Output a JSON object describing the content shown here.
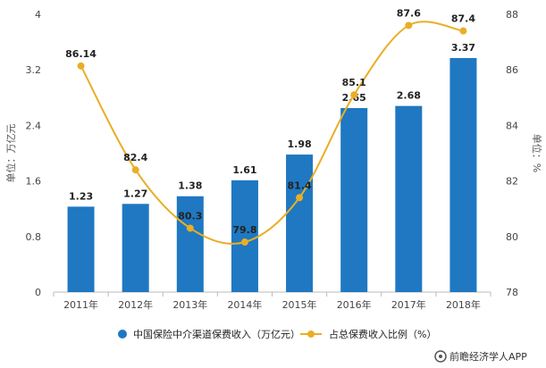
{
  "chart_data": {
    "type": "bar+line",
    "categories": [
      "2011年",
      "2012年",
      "2013年",
      "2014年",
      "2015年",
      "2016年",
      "2017年",
      "2018年"
    ],
    "series": [
      {
        "name": "中国保险中介渠道保费收入（万亿元）",
        "type": "bar",
        "axis": "left",
        "values": [
          1.23,
          1.27,
          1.38,
          1.61,
          1.98,
          2.65,
          2.68,
          3.37
        ],
        "labels": [
          "1.23",
          "1.27",
          "1.38",
          "1.61",
          "1.98",
          "2.65",
          "2.68",
          "3.37"
        ]
      },
      {
        "name": "占总保费收入比例（%）",
        "type": "line",
        "axis": "right",
        "values": [
          86.14,
          82.4,
          80.3,
          79.8,
          81.4,
          85.1,
          87.6,
          87.4
        ],
        "labels": [
          "86.14",
          "82.4",
          "80.3",
          "79.8",
          "81.4",
          "85.1",
          "87.6",
          "87.4"
        ]
      }
    ],
    "ylabel": "单位：万亿元",
    "y2label": "单位：%",
    "ylim": [
      0,
      4
    ],
    "y2lim": [
      78,
      88
    ],
    "yticks": [
      "0",
      "0.8",
      "1.6",
      "2.4",
      "3.2",
      "4"
    ],
    "y2ticks": [
      "78",
      "80",
      "82",
      "84",
      "86",
      "88"
    ],
    "legend_position": "bottom",
    "grid": false
  },
  "colors": {
    "bar": "#1f78c1",
    "line": "#e9ae25"
  },
  "footer": {
    "source": "前瞻经济学人APP",
    "icon": "brand-logo-icon"
  }
}
